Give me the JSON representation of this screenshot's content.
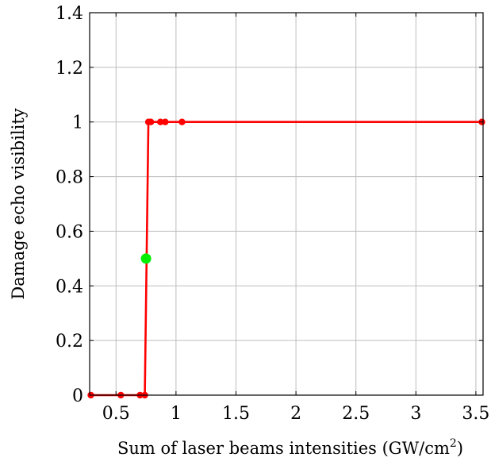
{
  "chart_data": {
    "type": "line",
    "title": "",
    "xlabel_main": "Sum of laser beams intensities (GW/cm",
    "xlabel_sup": "2",
    "xlabel_tail": ")",
    "ylabel": "Damage echo visibility",
    "xlim": [
      0.28,
      3.56
    ],
    "ylim": [
      0,
      1.4
    ],
    "xticks": [
      0.5,
      1,
      1.5,
      2,
      2.5,
      3,
      3.5
    ],
    "xtick_labels": [
      "0.5",
      "1",
      "1.5",
      "2",
      "2.5",
      "3",
      "3.5"
    ],
    "yticks": [
      0,
      0.2,
      0.4,
      0.6,
      0.8,
      1.0,
      1.2,
      1.4
    ],
    "ytick_labels": [
      "0",
      "0.2",
      "0.4",
      "0.6",
      "0.8",
      "1",
      "1.2",
      "1.4"
    ],
    "grid": true,
    "series": [
      {
        "color": "#ff0000",
        "x": [
          0.29,
          0.54,
          0.7,
          0.74,
          0.77,
          0.79,
          0.87,
          0.91,
          1.05,
          3.55
        ],
        "y": [
          0,
          0,
          0,
          0,
          1,
          1,
          1,
          1,
          1,
          1
        ]
      }
    ],
    "highlight_point": {
      "x": 0.75,
      "y": 0.5,
      "color": "#00ee00"
    }
  }
}
